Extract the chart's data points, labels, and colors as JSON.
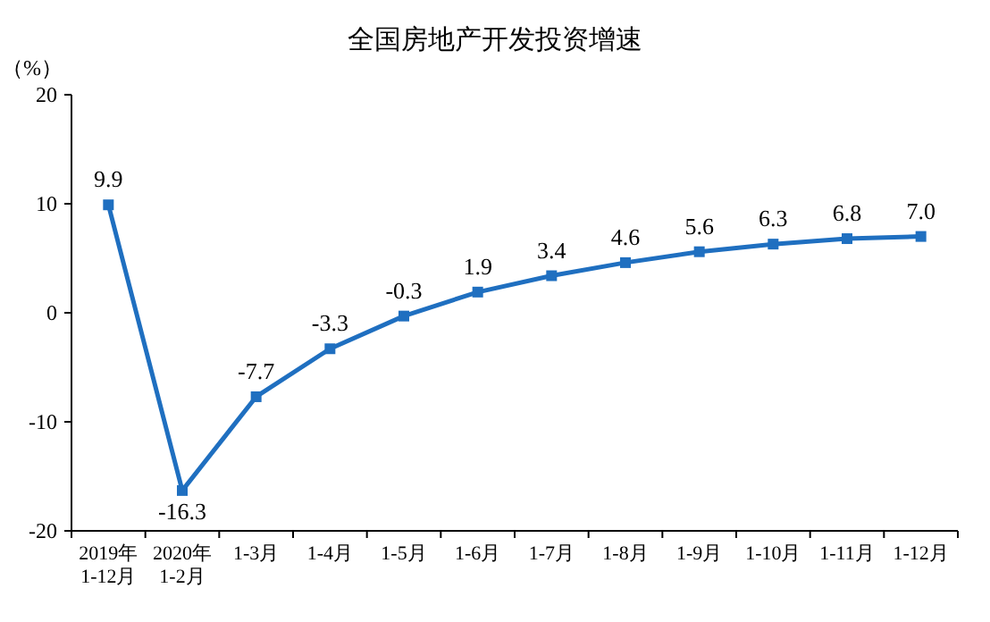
{
  "chart_data": {
    "type": "line",
    "title": "全国房地产开发投资增速",
    "ylabel": "（%）",
    "categories": [
      "2019年\n1-12月",
      "2020年\n1-2月",
      "1-3月",
      "1-4月",
      "1-5月",
      "1-6月",
      "1-7月",
      "1-8月",
      "1-9月",
      "1-10月",
      "1-11月",
      "1-12月"
    ],
    "series": [
      {
        "color": "#1f6fc0",
        "values": [
          9.9,
          -16.3,
          -7.7,
          -3.3,
          -0.3,
          1.9,
          3.4,
          4.6,
          5.6,
          6.3,
          6.8,
          7.0
        ],
        "value_labels": [
          "9.9",
          "-16.3",
          "-7.7",
          "-3.3",
          "-0.3",
          "1.9",
          "3.4",
          "4.6",
          "5.6",
          "6.3",
          "6.8",
          "7.0"
        ]
      }
    ],
    "ylim": [
      -20,
      20
    ],
    "yticks": [
      -20,
      -10,
      0,
      10,
      20
    ],
    "marker": "square"
  }
}
